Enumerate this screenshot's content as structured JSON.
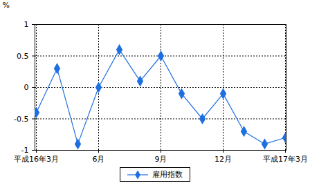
{
  "chart_data": {
    "type": "line",
    "categories": [
      "平成16年3月",
      null,
      null,
      "6月",
      null,
      null,
      "9月",
      null,
      null,
      "12月",
      null,
      null,
      "平成17年3月"
    ],
    "series": [
      {
        "name": "雇用指数",
        "color": "#1e6fe0",
        "marker": "diamond",
        "values": [
          -0.4,
          0.3,
          -0.9,
          0.0,
          0.6,
          0.1,
          0.5,
          -0.1,
          -0.5,
          -0.1,
          -0.7,
          -0.9,
          -0.8
        ]
      }
    ],
    "y_label": "%",
    "ylim": [
      -1,
      1
    ],
    "yticks": [
      -1,
      -0.5,
      0,
      0.5,
      1
    ],
    "grid": true,
    "legend": "bottom"
  }
}
